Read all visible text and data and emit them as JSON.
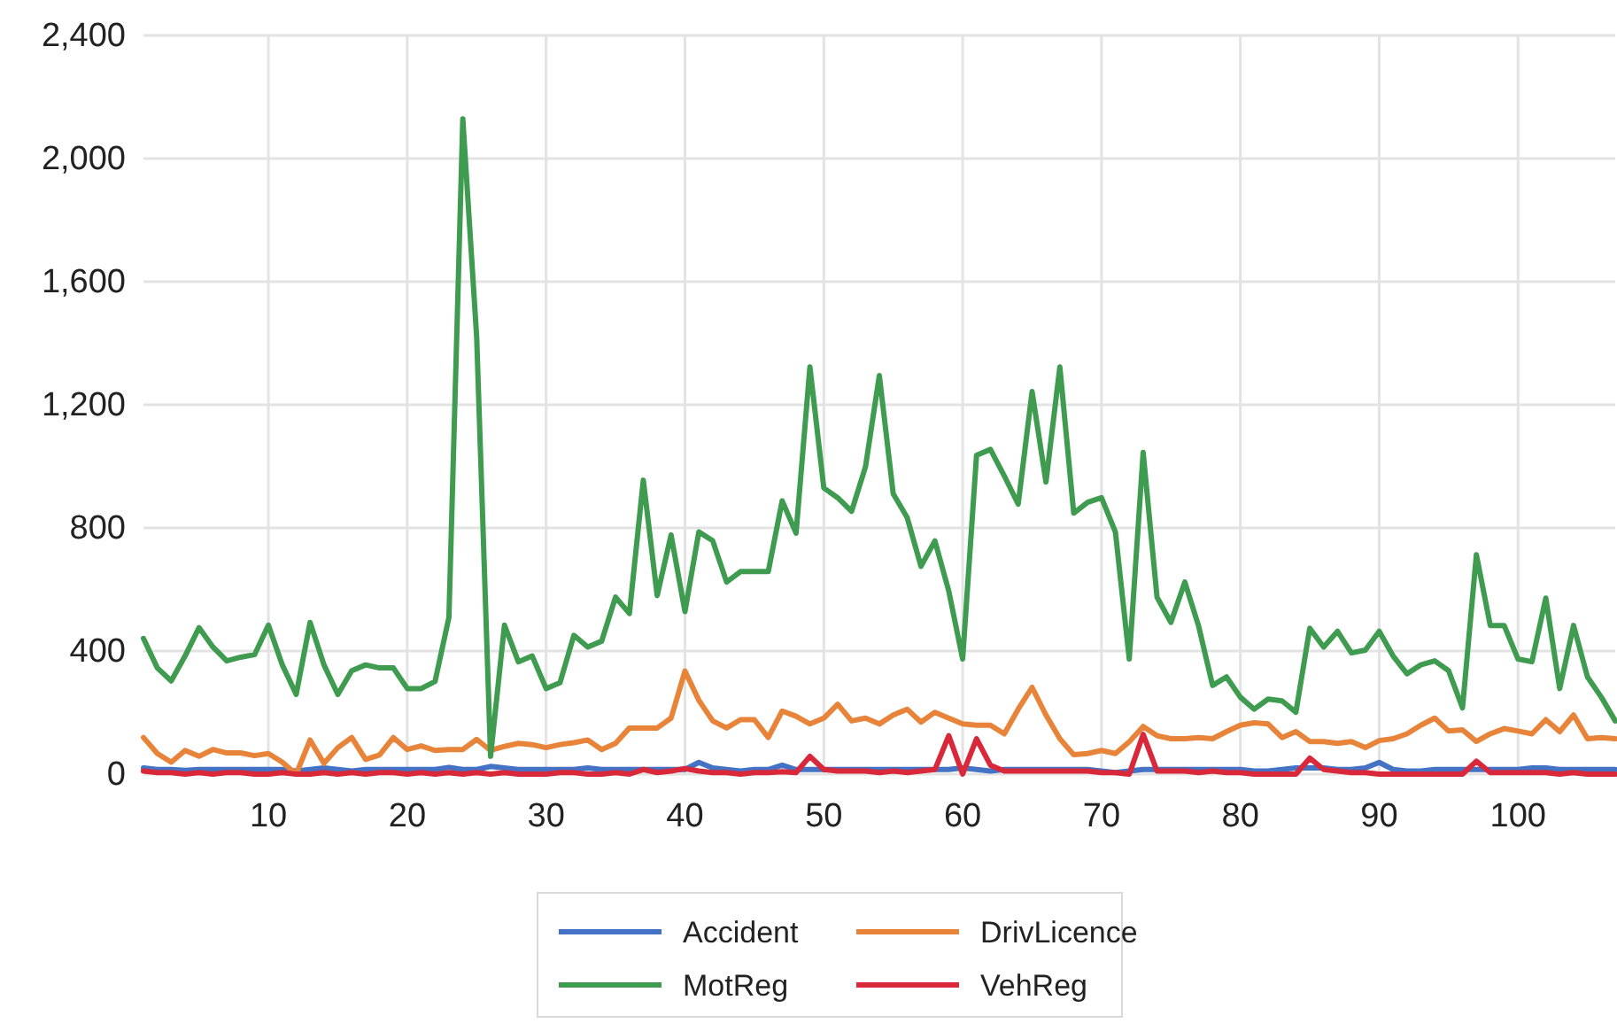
{
  "chart_data": {
    "type": "line",
    "x": [
      1,
      2,
      3,
      4,
      5,
      6,
      7,
      8,
      9,
      10,
      11,
      12,
      13,
      14,
      15,
      16,
      17,
      18,
      19,
      20,
      21,
      22,
      23,
      24,
      25,
      26,
      27,
      28,
      29,
      30,
      31,
      32,
      33,
      34,
      35,
      36,
      37,
      38,
      39,
      40,
      41,
      42,
      43,
      44,
      45,
      46,
      47,
      48,
      49,
      50,
      51,
      52,
      53,
      54,
      55,
      56,
      57,
      58,
      59,
      60,
      61,
      62,
      63,
      64,
      65,
      66,
      67,
      68,
      69,
      70,
      71,
      72,
      73,
      74,
      75,
      76,
      77,
      78,
      79,
      80,
      81,
      82,
      83,
      84,
      85,
      86,
      87,
      88,
      89,
      90,
      91,
      92,
      93,
      94,
      95,
      96,
      97,
      98,
      99,
      100,
      101,
      102,
      103,
      104,
      105,
      106,
      107
    ],
    "xlim": [
      1,
      107
    ],
    "xticks": [
      10,
      20,
      30,
      40,
      50,
      60,
      70,
      80,
      90,
      100
    ],
    "ylim": [
      0,
      2400
    ],
    "yticks": [
      {
        "value": 0,
        "label": "0"
      },
      {
        "value": 400,
        "label": "400"
      },
      {
        "value": 800,
        "label": "800"
      },
      {
        "value": 1200,
        "label": "1,200"
      },
      {
        "value": 1600,
        "label": "1,600"
      },
      {
        "value": 2000,
        "label": "2,000"
      },
      {
        "value": 2400,
        "label": "2,400"
      }
    ],
    "grid": true,
    "legend": "bottom",
    "line_style": "solid",
    "marker": "none",
    "series": [
      {
        "name": "Accident",
        "color": "#4472c4",
        "values": [
          20,
          15,
          15,
          12,
          15,
          15,
          15,
          15,
          15,
          15,
          15,
          10,
          15,
          20,
          15,
          10,
          15,
          15,
          15,
          15,
          15,
          15,
          22,
          15,
          15,
          25,
          20,
          15,
          15,
          15,
          15,
          15,
          20,
          15,
          15,
          15,
          15,
          15,
          15,
          15,
          38,
          20,
          15,
          10,
          15,
          15,
          29,
          15,
          15,
          15,
          15,
          15,
          15,
          15,
          15,
          15,
          15,
          15,
          15,
          20,
          15,
          10,
          15,
          15,
          15,
          15,
          15,
          15,
          15,
          10,
          5,
          10,
          15,
          15,
          15,
          15,
          15,
          15,
          15,
          15,
          10,
          10,
          15,
          20,
          20,
          20,
          15,
          15,
          20,
          38,
          15,
          10,
          10,
          15,
          15,
          15,
          15,
          15,
          15,
          15,
          20,
          20,
          15,
          15,
          15,
          15,
          15
        ]
      },
      {
        "name": "DrivLicence",
        "color": "#e8843a",
        "values": [
          119,
          67,
          39,
          77,
          58,
          80,
          69,
          69,
          60,
          67,
          39,
          0,
          111,
          35,
          86,
          119,
          48,
          62,
          119,
          80,
          92,
          77,
          80,
          80,
          113,
          77,
          90,
          100,
          96,
          86,
          96,
          102,
          111,
          80,
          100,
          150,
          150,
          150,
          182,
          335,
          240,
          173,
          150,
          177,
          177,
          119,
          205,
          188,
          163,
          182,
          227,
          173,
          182,
          163,
          192,
          211,
          169,
          201,
          182,
          163,
          159,
          159,
          131,
          211,
          282,
          192,
          115,
          63,
          67,
          77,
          67,
          105,
          155,
          125,
          115,
          115,
          119,
          115,
          138,
          159,
          167,
          163,
          119,
          138,
          106,
          106,
          100,
          106,
          86,
          109,
          115,
          131,
          159,
          182,
          140,
          144,
          106,
          131,
          148,
          140,
          131,
          177,
          138,
          192,
          115,
          119,
          115
        ]
      },
      {
        "name": "MotReg",
        "color": "#3e9b4f",
        "values": [
          441,
          345,
          303,
          384,
          476,
          413,
          368,
          380,
          388,
          484,
          355,
          259,
          493,
          355,
          259,
          336,
          355,
          345,
          345,
          278,
          278,
          301,
          509,
          2129,
          1419,
          58,
          484,
          365,
          384,
          278,
          297,
          451,
          413,
          432,
          575,
          522,
          955,
          580,
          777,
          528,
          787,
          758,
          624,
          658,
          658,
          658,
          888,
          783,
          1323,
          930,
          898,
          854,
          998,
          1295,
          911,
          834,
          675,
          758,
          595,
          374,
          1036,
          1055,
          969,
          877,
          1243,
          949,
          1323,
          848,
          883,
          898,
          787,
          374,
          1045,
          575,
          493,
          624,
          480,
          288,
          316,
          250,
          211,
          244,
          238,
          201,
          474,
          413,
          464,
          394,
          403,
          464,
          384,
          326,
          355,
          368,
          336,
          215,
          713,
          483,
          483,
          374,
          365,
          572,
          278,
          483,
          316,
          250,
          173
        ]
      },
      {
        "name": "VehReg",
        "color": "#d8283a",
        "values": [
          10,
          5,
          5,
          0,
          5,
          0,
          5,
          5,
          0,
          0,
          5,
          0,
          0,
          5,
          0,
          5,
          0,
          5,
          5,
          0,
          5,
          0,
          5,
          0,
          5,
          0,
          5,
          0,
          0,
          0,
          5,
          5,
          0,
          0,
          5,
          0,
          15,
          5,
          10,
          18,
          10,
          5,
          5,
          0,
          5,
          5,
          8,
          5,
          58,
          15,
          10,
          10,
          10,
          5,
          10,
          5,
          10,
          15,
          125,
          0,
          115,
          29,
          10,
          10,
          10,
          10,
          10,
          10,
          10,
          5,
          5,
          0,
          129,
          10,
          10,
          10,
          5,
          10,
          5,
          5,
          0,
          0,
          0,
          0,
          52,
          15,
          10,
          5,
          5,
          0,
          0,
          0,
          0,
          0,
          0,
          0,
          42,
          5,
          5,
          5,
          5,
          5,
          0,
          5,
          0,
          0,
          0
        ]
      }
    ]
  }
}
